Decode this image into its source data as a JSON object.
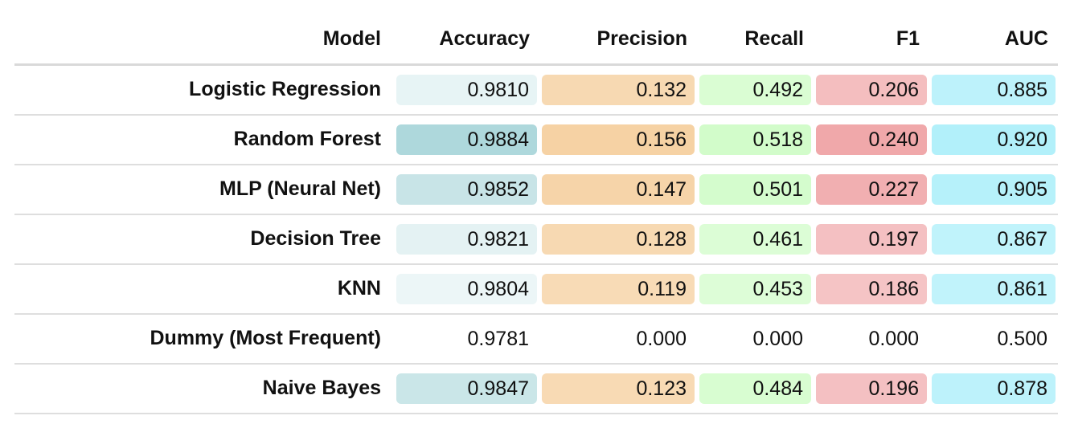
{
  "chart_data": {
    "type": "table",
    "columns": [
      "Model",
      "Accuracy",
      "Precision",
      "Recall",
      "F1",
      "AUC"
    ],
    "rows": [
      {
        "model": "Logistic Regression",
        "values": [
          "0.9810",
          "0.132",
          "0.492",
          "0.206",
          "0.885"
        ]
      },
      {
        "model": "Random Forest",
        "values": [
          "0.9884",
          "0.156",
          "0.518",
          "0.240",
          "0.920"
        ]
      },
      {
        "model": "MLP (Neural Net)",
        "values": [
          "0.9852",
          "0.147",
          "0.501",
          "0.227",
          "0.905"
        ]
      },
      {
        "model": "Decision Tree",
        "values": [
          "0.9821",
          "0.128",
          "0.461",
          "0.197",
          "0.867"
        ]
      },
      {
        "model": "KNN",
        "values": [
          "0.9804",
          "0.119",
          "0.453",
          "0.186",
          "0.861"
        ]
      },
      {
        "model": "Dummy (Most Frequent)",
        "values": [
          "0.9781",
          "0.000",
          "0.000",
          "0.000",
          "0.500"
        ]
      },
      {
        "model": "Naive Bayes",
        "values": [
          "0.9847",
          "0.123",
          "0.484",
          "0.196",
          "0.878"
        ]
      }
    ],
    "column_colors": {
      "Accuracy": "#aad6da",
      "Precision": "#f6d2a4",
      "Recall": "#cdfcc4",
      "F1": "#f0a8aa",
      "AUC": "#b2f0fa"
    },
    "highlight_opacity": [
      [
        0.28,
        0.85,
        0.75,
        0.75,
        0.85
      ],
      [
        0.95,
        1.0,
        0.9,
        1.0,
        1.0
      ],
      [
        0.65,
        0.95,
        0.85,
        0.92,
        0.95
      ],
      [
        0.32,
        0.85,
        0.7,
        0.72,
        0.82
      ],
      [
        0.22,
        0.8,
        0.68,
        0.68,
        0.8
      ],
      [
        0.0,
        0.0,
        0.0,
        0.0,
        0.0
      ],
      [
        0.62,
        0.82,
        0.78,
        0.72,
        0.85
      ]
    ]
  }
}
